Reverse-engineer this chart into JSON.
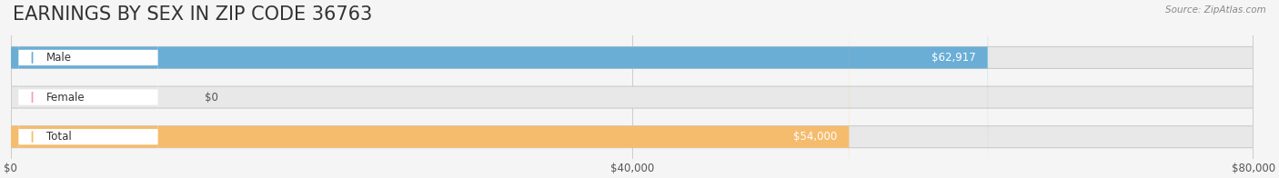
{
  "title": "EARNINGS BY SEX IN ZIP CODE 36763",
  "source": "Source: ZipAtlas.com",
  "categories": [
    "Male",
    "Female",
    "Total"
  ],
  "values": [
    62917,
    0,
    54000
  ],
  "bar_colors": [
    "#6aaed6",
    "#f4a0b5",
    "#f5bc6e"
  ],
  "bar_labels": [
    "$62,917",
    "$0",
    "$54,000"
  ],
  "label_colors": [
    "white",
    "black",
    "white"
  ],
  "xlim": [
    0,
    80000
  ],
  "xticks": [
    0,
    40000,
    80000
  ],
  "xtick_labels": [
    "$0",
    "$40,000",
    "$80,000"
  ],
  "background_color": "#f5f5f5",
  "bar_bg_color": "#e8e8e8",
  "title_fontsize": 15,
  "bar_height": 0.55,
  "figsize": [
    14.06,
    1.96
  ],
  "dpi": 100
}
